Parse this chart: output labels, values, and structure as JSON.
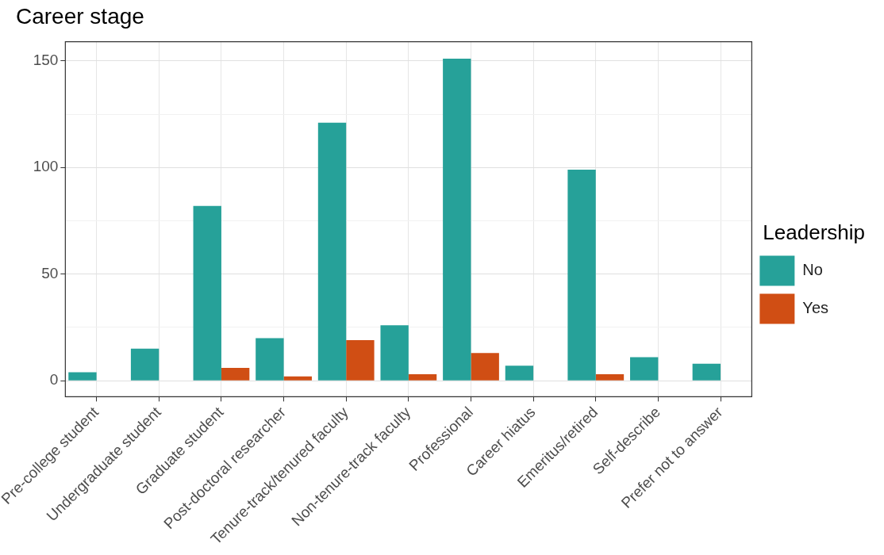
{
  "chart_data": {
    "type": "bar",
    "title": "Career stage",
    "legend_title": "Leadership",
    "categories": [
      "Pre-college student",
      "Undergraduate student",
      "Graduate student",
      "Post-doctoral researcher",
      "Tenure-track/tenured faculty",
      "Non-tenure-track faculty",
      "Professional",
      "Career hiatus",
      "Emeritus/retired",
      "Self-describe",
      "Prefer not to answer"
    ],
    "series": [
      {
        "name": "No",
        "color": "#26a199",
        "values": [
          4,
          15,
          82,
          20,
          121,
          26,
          151,
          7,
          99,
          11,
          8
        ]
      },
      {
        "name": "Yes",
        "color": "#d04e14",
        "values": [
          null,
          null,
          6,
          2,
          19,
          3,
          13,
          null,
          3,
          null,
          null
        ]
      }
    ],
    "ylim": [
      -7.5,
      159
    ],
    "yticks": [
      0,
      {
        "value": 25,
        "label": null
      },
      50,
      {
        "value": 75,
        "label": null
      },
      100,
      {
        "value": 125,
        "label": null
      },
      150
    ],
    "grid": true,
    "legend": "right"
  }
}
